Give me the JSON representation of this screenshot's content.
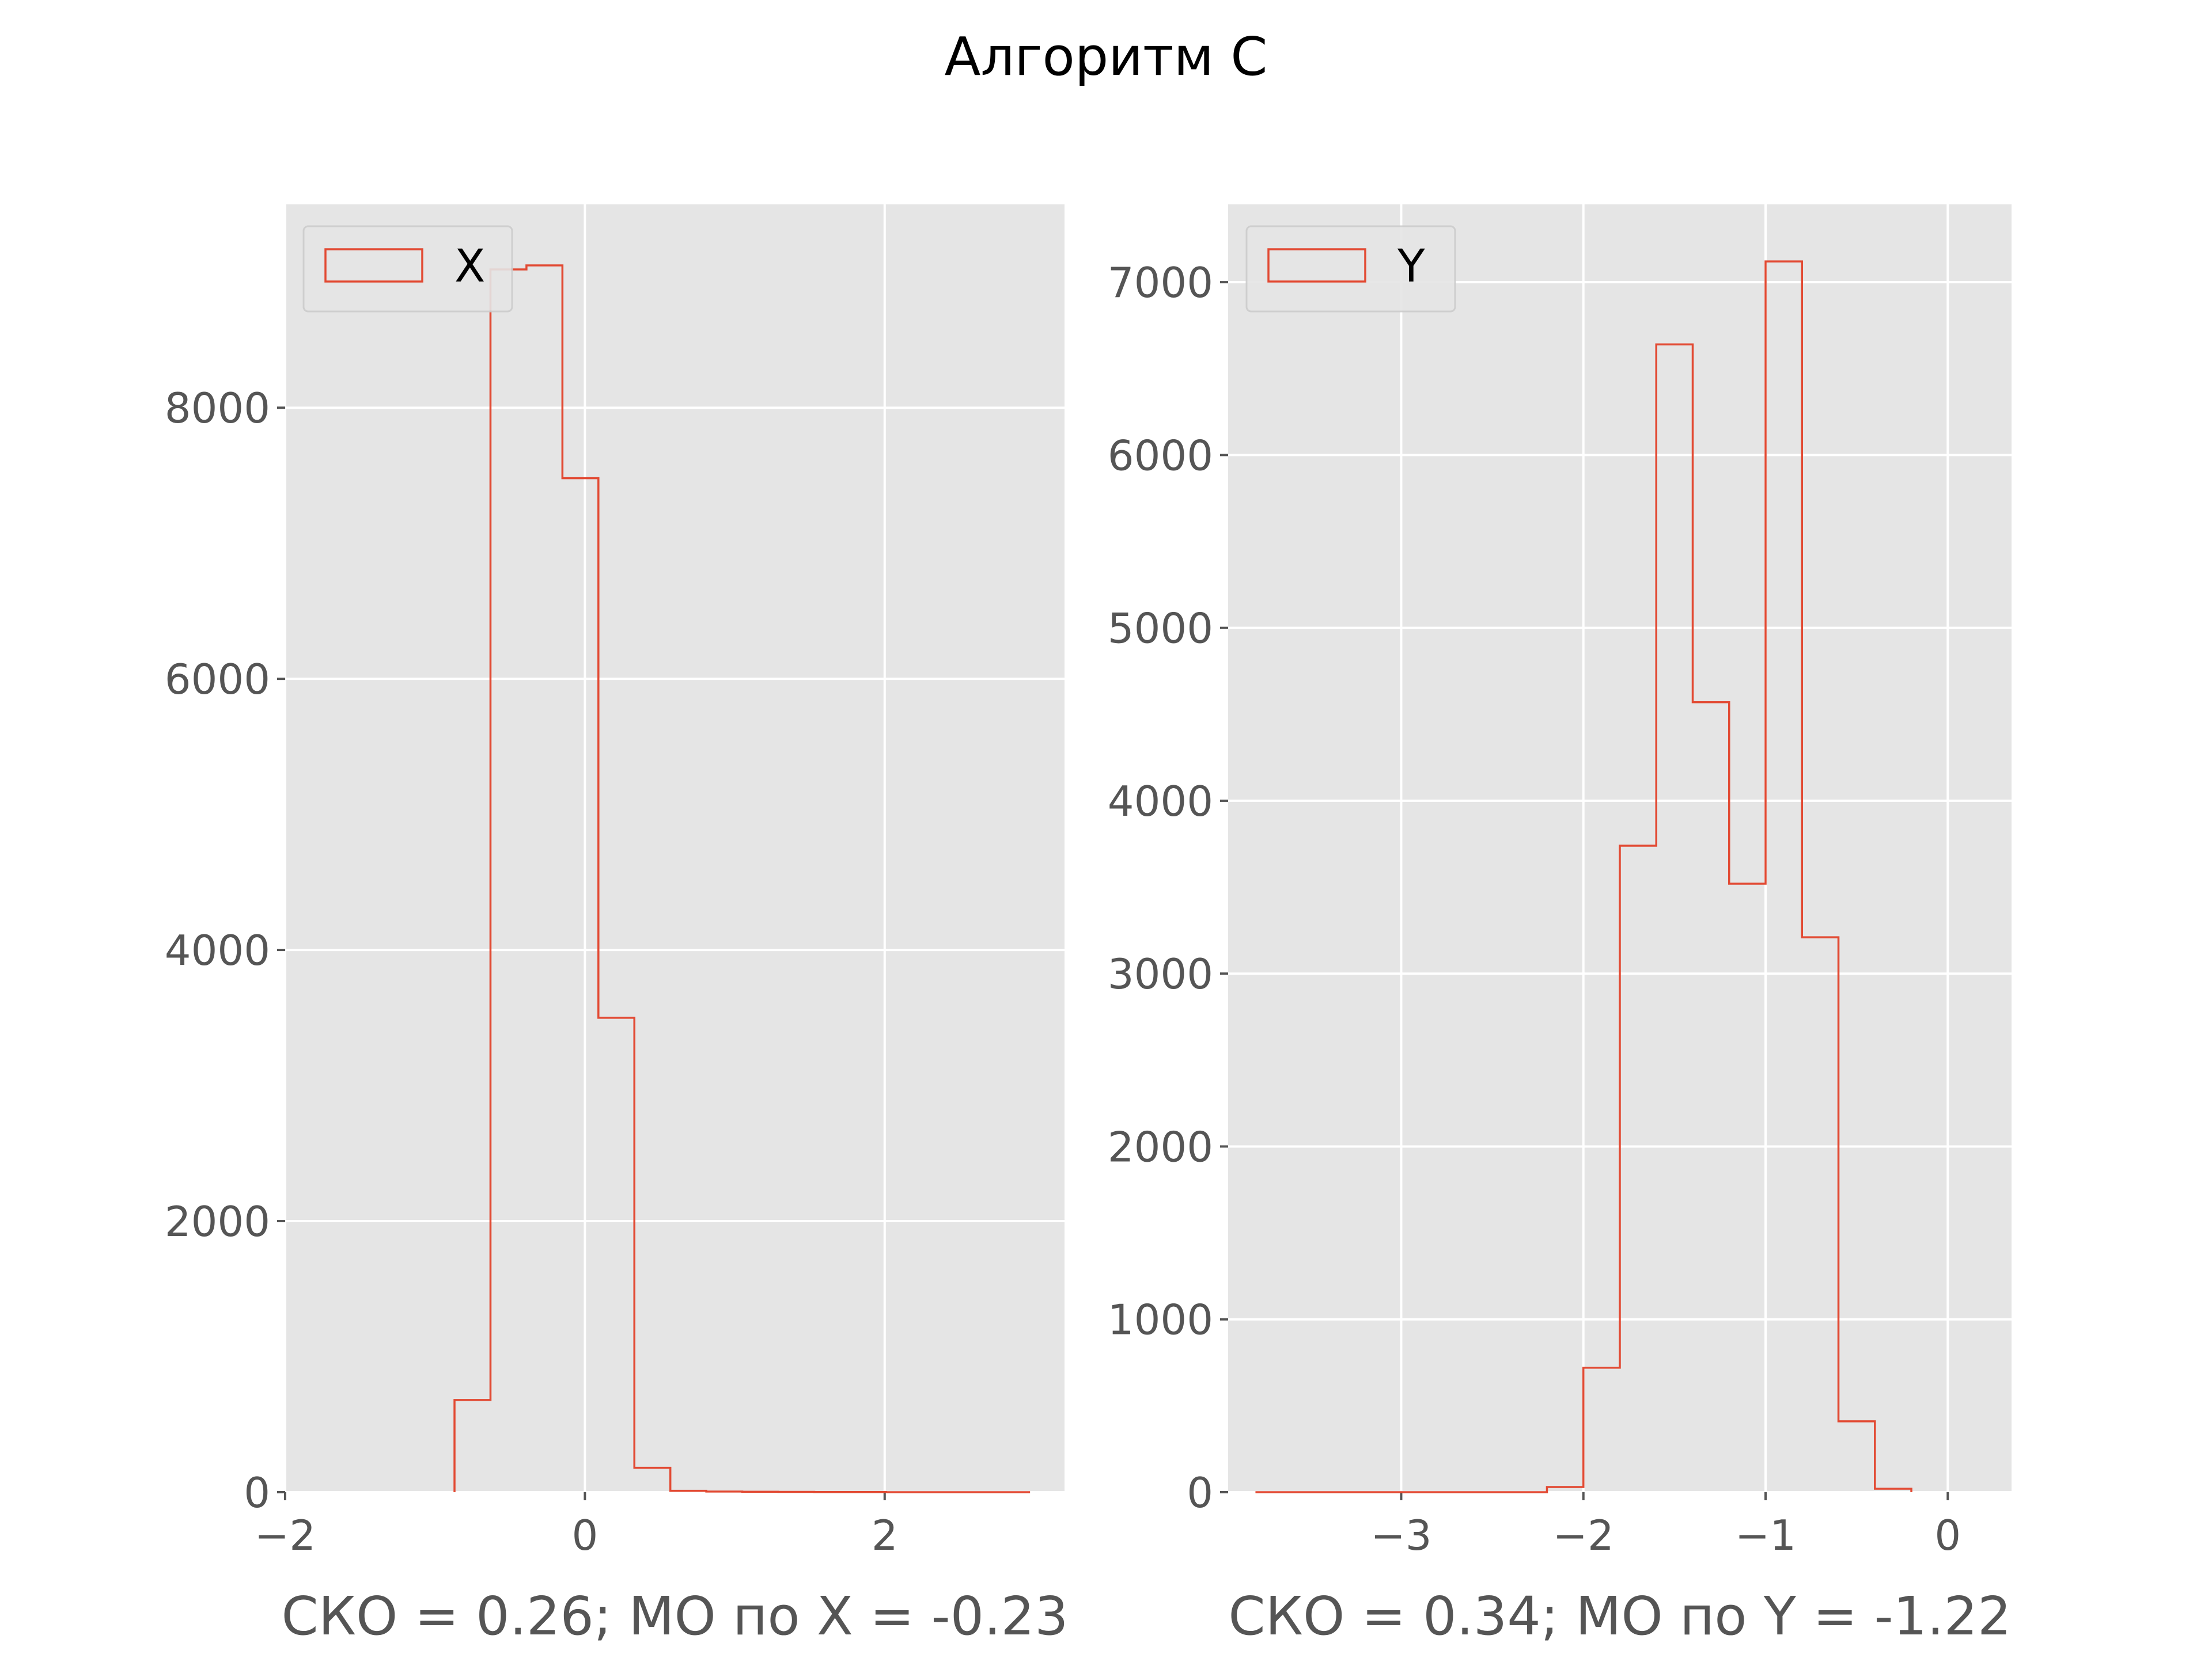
{
  "figure": {
    "title": "Алгоритм C"
  },
  "style": {
    "background": "#E5E5E5",
    "grid_color": "#FFFFFF",
    "line_color": "#E24A33",
    "text_color": "#555555"
  },
  "chart_data": [
    {
      "type": "histogram",
      "xlabel": "СКО = 0.26; МО по X = -0.23",
      "ylabel": "",
      "legend": {
        "labels": [
          "X"
        ],
        "placement": "upper-left"
      },
      "xlim": [
        -2.0,
        3.2
      ],
      "ylim": [
        0,
        9500
      ],
      "xticks": [
        -2,
        0,
        2
      ],
      "xtick_labels": [
        "−2",
        "0",
        "2"
      ],
      "yticks": [
        0,
        2000,
        4000,
        6000,
        8000
      ],
      "ytick_labels": [
        "0",
        "2000",
        "4000",
        "6000",
        "8000"
      ],
      "grid": true,
      "series": [
        {
          "name": "X",
          "edges": [
            -0.87,
            -0.63,
            -0.39,
            -0.15,
            0.09,
            0.33,
            0.57,
            0.81,
            1.05,
            1.29,
            1.53,
            1.77,
            2.01,
            2.25,
            2.49,
            2.73,
            2.97
          ],
          "counts": [
            680,
            9020,
            9050,
            7480,
            3500,
            180,
            10,
            5,
            3,
            2,
            1,
            1,
            0,
            0,
            0,
            0
          ]
        }
      ]
    },
    {
      "type": "histogram",
      "xlabel": "СКО = 0.34; МО по Y = -1.22",
      "ylabel": "",
      "legend": {
        "labels": [
          "Y"
        ],
        "placement": "upper-left"
      },
      "xlim": [
        -3.95,
        0.35
      ],
      "ylim": [
        0,
        7450
      ],
      "xticks": [
        -3,
        -2,
        -1,
        0
      ],
      "xtick_labels": [
        "−3",
        "−2",
        "−1",
        "0"
      ],
      "yticks": [
        0,
        1000,
        2000,
        3000,
        4000,
        5000,
        6000,
        7000
      ],
      "ytick_labels": [
        "0",
        "1000",
        "2000",
        "3000",
        "4000",
        "5000",
        "6000",
        "7000"
      ],
      "grid": true,
      "series": [
        {
          "name": "Y",
          "edges": [
            -3.8,
            -3.6,
            -3.4,
            -3.2,
            -3.0,
            -2.8,
            -2.6,
            -2.4,
            -2.2,
            -2.0,
            -1.8,
            -1.6,
            -1.4,
            -1.2,
            -1.0,
            -0.8,
            -0.6,
            -0.4,
            -0.2
          ],
          "counts": [
            0,
            0,
            0,
            0,
            0,
            0,
            0,
            0,
            30,
            720,
            3740,
            6640,
            4570,
            3520,
            7120,
            3210,
            410,
            20
          ]
        }
      ]
    }
  ]
}
